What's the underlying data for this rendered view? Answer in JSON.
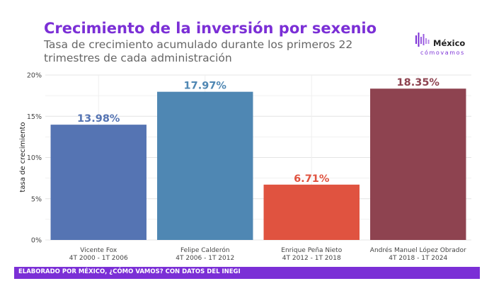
{
  "logo": {
    "name": "México",
    "tagline": "cómovamos"
  },
  "footer": {
    "note": "ELABORADO POR MÉXICO, ¿CÓMO VAMOS? CON DATOS DEL INEGI"
  },
  "colors": {
    "accent": "#7b2fd6",
    "grid": "#e6e6e6",
    "axis_text": "#666666"
  },
  "chart_data": {
    "type": "bar",
    "title": "Crecimiento de la inversión por sexenio",
    "subtitle": "Tasa de crecimiento acumulado durante los primeros 22 trimestres de cada administración",
    "xlabel": "",
    "ylabel": "tasa de crecimiento",
    "ylim": [
      0,
      20
    ],
    "yticks": [
      0,
      5,
      10,
      15,
      20
    ],
    "ytick_labels": [
      "0%",
      "5%",
      "10%",
      "15%",
      "20%"
    ],
    "grid": true,
    "legend": "none",
    "categories": [
      {
        "name": "Vicente Fox",
        "period": "4T 2000 - 1T 2006"
      },
      {
        "name": "Felipe Calderón",
        "period": "4T 2006 - 1T 2012"
      },
      {
        "name": "Enrique Peña Nieto",
        "period": "4T 2012 - 1T 2018"
      },
      {
        "name": "Andrés Manuel López Obrador",
        "period": "4T 2018 - 1T 2024"
      }
    ],
    "values": [
      13.98,
      17.97,
      6.71,
      18.35
    ],
    "value_labels": [
      "13.98%",
      "17.97%",
      "6.71%",
      "18.35%"
    ],
    "bar_colors": [
      "#5574b3",
      "#4f87b3",
      "#e05340",
      "#8e4350"
    ]
  }
}
